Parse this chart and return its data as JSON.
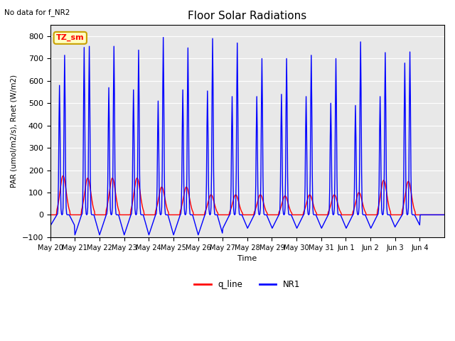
{
  "title": "Floor Solar Radiations",
  "top_left_text": "No data for f_NR2",
  "xlabel": "Time",
  "ylabel": "PAR (umol/m2/s), Rnet (W/m2)",
  "ylim": [
    -100,
    850
  ],
  "yticks": [
    -100,
    0,
    100,
    200,
    300,
    400,
    500,
    600,
    700,
    800
  ],
  "legend_label1": "q_line",
  "legend_label2": "NR1",
  "legend_color1": "red",
  "legend_color2": "blue",
  "inset_label": "TZ_sm",
  "inset_bg": "#FFFFC0",
  "inset_border": "#C8A000",
  "background_color": "#E8E8E8",
  "n_days": 16,
  "tick_labels": [
    "May 20",
    "May 21",
    "May 22",
    "May 23",
    "May 24",
    "May 25",
    "May 26",
    "May 27",
    "May 28",
    "May 29",
    "May 30",
    "May 31",
    "Jun 1",
    "Jun 2",
    "Jun 3",
    "Jun 4"
  ],
  "nr1_peak1": [
    580,
    750,
    570,
    560,
    510,
    560,
    555,
    530,
    530,
    540,
    530,
    500,
    490,
    530,
    680,
    0
  ],
  "nr1_peak2": [
    715,
    755,
    755,
    738,
    795,
    748,
    790,
    770,
    700,
    700,
    715,
    700,
    775,
    727,
    730,
    0
  ],
  "nr1_night": [
    -50,
    -90,
    -90,
    -90,
    -90,
    -90,
    -90,
    -60,
    -60,
    -60,
    -60,
    -60,
    -60,
    -60,
    -50,
    0
  ],
  "q_peak": [
    175,
    165,
    165,
    165,
    125,
    125,
    90,
    90,
    90,
    85,
    90,
    90,
    100,
    155,
    150,
    0
  ],
  "dt_min": 30
}
